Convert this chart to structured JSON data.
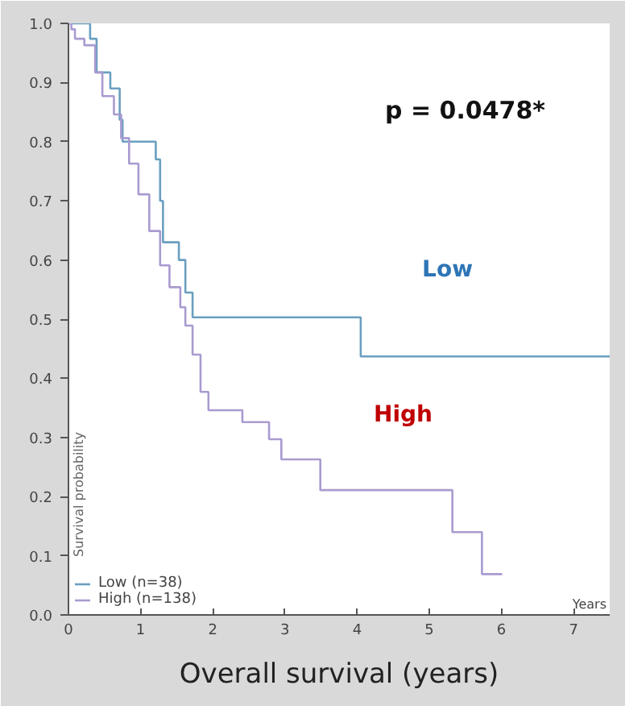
{
  "chart_data": {
    "type": "step",
    "title": "Overall survival (years)",
    "xlabel": "Years",
    "ylabel": "Survival probability",
    "xlim": [
      0,
      7.5
    ],
    "xticks": [
      0,
      1,
      2,
      3,
      4,
      5,
      6,
      7
    ],
    "ylim": [
      0,
      1.0
    ],
    "yticks": [
      {
        "value": 0,
        "label": "0.0"
      },
      0.1,
      0.2,
      0.3,
      0.4,
      0.5,
      0.6,
      0.7,
      0.8,
      0.9,
      {
        "value": 1,
        "label": "1.0"
      }
    ],
    "grid": false,
    "legend": "bottom left",
    "series": [
      {
        "name": "Low (n=38)",
        "color": "#6a9fc0",
        "x": [
          0,
          0.3,
          0.39,
          0.58,
          0.71,
          0.75,
          1.21,
          1.27,
          1.31,
          1.53,
          1.62,
          1.72,
          4.05,
          7.5
        ],
        "values": [
          1.0,
          0.974,
          0.917,
          0.89,
          0.837,
          0.8,
          0.77,
          0.7,
          0.63,
          0.6,
          0.545,
          0.503,
          0.437,
          0.437
        ]
      },
      {
        "name": "High (n=138)",
        "color": "#a99bd0",
        "x": [
          0,
          0.04,
          0.09,
          0.22,
          0.37,
          0.47,
          0.63,
          0.73,
          0.84,
          0.97,
          1.12,
          1.27,
          1.4,
          1.55,
          1.62,
          1.72,
          1.83,
          1.94,
          2.41,
          2.78,
          2.95,
          3.49,
          5.32,
          5.73,
          6.01
        ],
        "values": [
          1.0,
          0.99,
          0.974,
          0.963,
          0.917,
          0.877,
          0.846,
          0.806,
          0.763,
          0.711,
          0.649,
          0.591,
          0.554,
          0.52,
          0.489,
          0.44,
          0.377,
          0.346,
          0.326,
          0.297,
          0.263,
          0.211,
          0.14,
          0.069,
          0.069
        ]
      }
    ],
    "annotations": [
      "p = 0.0478*",
      "Low",
      "High"
    ]
  }
}
